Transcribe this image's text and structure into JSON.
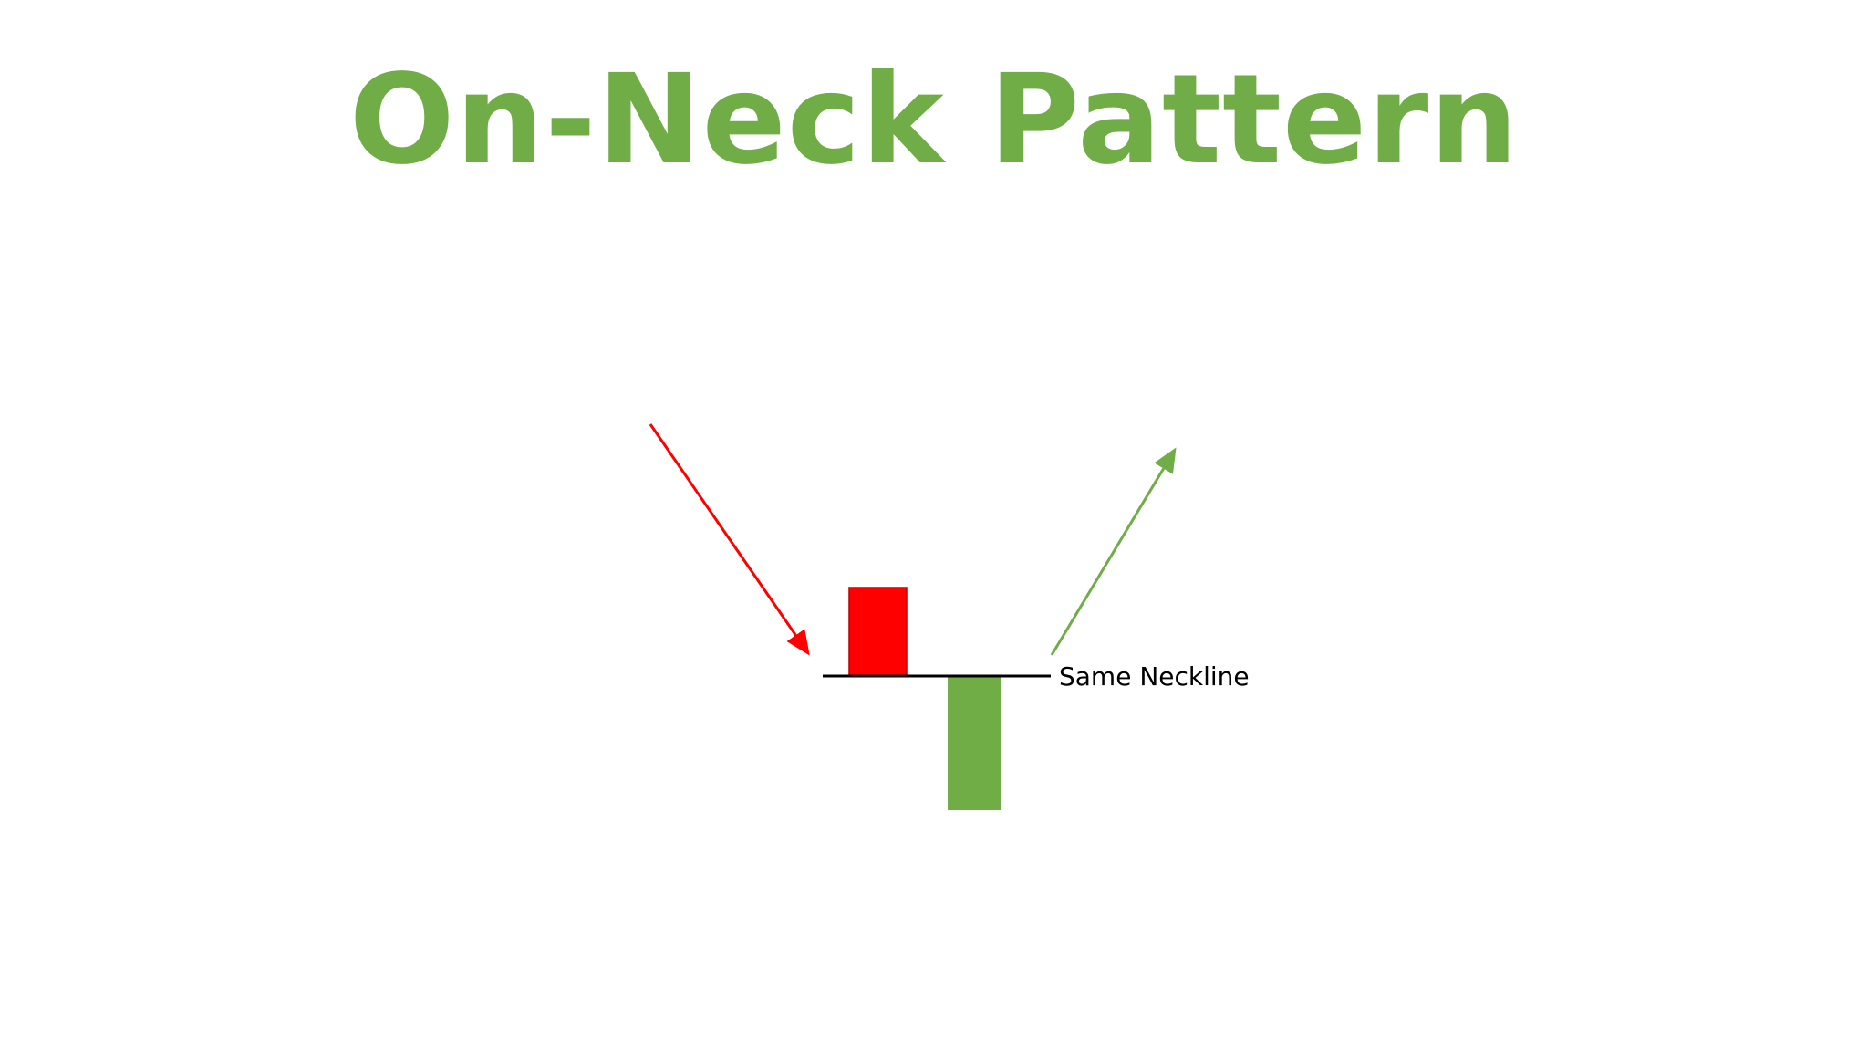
{
  "title": "On-Neck Pattern",
  "colors": {
    "title": "#70ad47",
    "bearish_candle": "#ff0000",
    "bullish_candle": "#70ad47",
    "downtrend_arrow": "#ff0000",
    "uptrend_arrow": "#70ad47",
    "neckline": "#000000",
    "label_text": "#000000",
    "background": "#ffffff"
  },
  "diagram": {
    "neckline_label": "Same Neckline"
  }
}
